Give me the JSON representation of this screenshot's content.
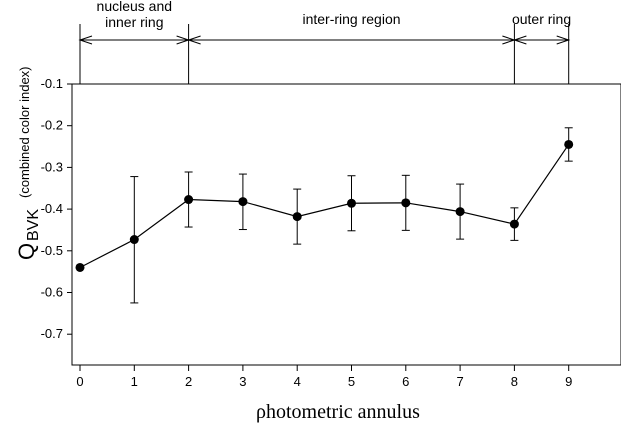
{
  "chart_data": {
    "type": "line",
    "xlabel_symbol": "ρ",
    "xlabel_text": "hotometric annulus",
    "ylabel_main": "Q",
    "ylabel_sub": "BVK",
    "ylabel_desc": "(combined color index)",
    "xlim": [
      -0.1,
      9.5
    ],
    "ylim": [
      -0.75,
      -0.1
    ],
    "x_ticks": [
      "0",
      "1",
      "2",
      "3",
      "4",
      "5",
      "6",
      "7",
      "8",
      "9"
    ],
    "y_ticks": [
      "-0.1",
      "-0.2",
      "-0.3",
      "-0.4",
      "-0.5",
      "-0.6",
      "-0.7"
    ],
    "y_tick_values": [
      -0.1,
      -0.2,
      -0.3,
      -0.4,
      -0.5,
      -0.6,
      -0.7
    ],
    "x": [
      0,
      1,
      2,
      3,
      4,
      5,
      6,
      7,
      8,
      9
    ],
    "y": [
      -0.54,
      -0.473,
      -0.377,
      -0.382,
      -0.418,
      -0.386,
      -0.385,
      -0.406,
      -0.436,
      -0.245
    ],
    "err_low": [
      null,
      -0.625,
      -0.443,
      -0.449,
      -0.484,
      -0.452,
      -0.451,
      -0.472,
      -0.475,
      -0.285
    ],
    "err_high": [
      null,
      -0.322,
      -0.311,
      -0.316,
      -0.352,
      -0.32,
      -0.319,
      -0.34,
      -0.397,
      -0.205
    ],
    "regions": [
      {
        "label_lines": [
          "nucleus and",
          "inner ring"
        ],
        "from": 0,
        "to": 2
      },
      {
        "label_lines": [
          "inter-ring region"
        ],
        "from": 2,
        "to": 8
      },
      {
        "label_lines": [
          "outer ring"
        ],
        "from": 8,
        "to": 9
      }
    ]
  }
}
